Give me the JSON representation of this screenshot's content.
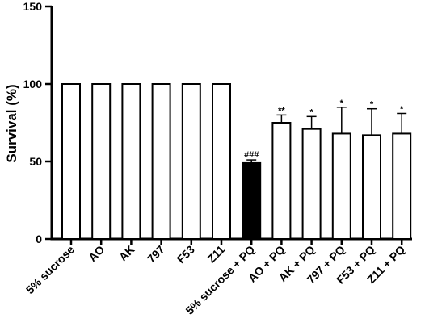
{
  "chart_data": {
    "type": "bar",
    "title": "",
    "xlabel": "",
    "ylabel": "Survival (%)",
    "ylim": [
      0,
      150
    ],
    "yticks": [
      0,
      50,
      100,
      150
    ],
    "grid": false,
    "categories": [
      "5% sucrose",
      "AO",
      "AK",
      "797",
      "F53",
      "Z11",
      "5% sucrose + PQ",
      "AO + PQ",
      "AK + PQ",
      "797 + PQ",
      "F53 + PQ",
      "Z11 + PQ"
    ],
    "values": [
      100,
      100,
      100,
      100,
      100,
      100,
      49,
      75,
      71,
      68,
      67,
      68
    ],
    "errors": [
      0,
      0,
      0,
      0,
      0,
      0,
      2,
      5,
      8,
      17,
      17,
      13
    ],
    "annotations": [
      "",
      "",
      "",
      "",
      "",
      "",
      "###",
      "**",
      "*",
      "*",
      "*",
      "*"
    ],
    "fills": [
      "white",
      "white",
      "white",
      "white",
      "white",
      "white",
      "black",
      "white",
      "white",
      "white",
      "white",
      "white"
    ]
  }
}
